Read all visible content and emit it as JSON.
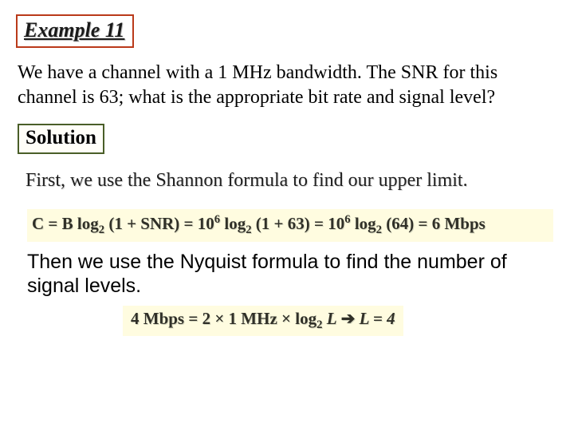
{
  "title": {
    "text": "Example 11",
    "border_color": "#ba3a1a",
    "fontsize": 26,
    "italic": true,
    "bold": true
  },
  "problem": {
    "text": "We have a channel with a 1 MHz bandwidth. The SNR for this channel is 63; what is the appropriate bit rate and signal level?",
    "fontsize": 24
  },
  "solution_label": {
    "text": "Solution",
    "border_color": "#4a5e28",
    "fontsize": 25
  },
  "shannon_intro": {
    "text": "First, we use the Shannon formula to find our upper limit.",
    "fontsize": 24
  },
  "shannon_formula": {
    "prefix": "C = B log",
    "sub1": "2",
    "part1": " (1 + SNR) = 10",
    "sup1": "6",
    "part2": " log",
    "sub2": "2",
    "part3": " (1 + 63) = 10",
    "sup2": "6",
    "part4": " log",
    "sub3": "2",
    "part5": " (64) = 6 Mbps",
    "background_color": "#fffce0",
    "fontsize": 21
  },
  "nyquist_intro": {
    "text": "Then we use the Nyquist formula to find the number of signal levels.",
    "fontsize": 25
  },
  "nyquist_formula": {
    "left1": "4 Mbps = 2 ",
    "times1": "×",
    "mid1": " 1 MHz ",
    "times2": "×",
    "mid2": " log",
    "sub": "2",
    "var": " L",
    "arrow": "  ➔  ",
    "result": "L = 4",
    "background_color": "#fffce0",
    "fontsize": 21
  },
  "colors": {
    "page_bg": "#ffffff",
    "text": "#000000",
    "highlight_bg": "#fffce0"
  }
}
